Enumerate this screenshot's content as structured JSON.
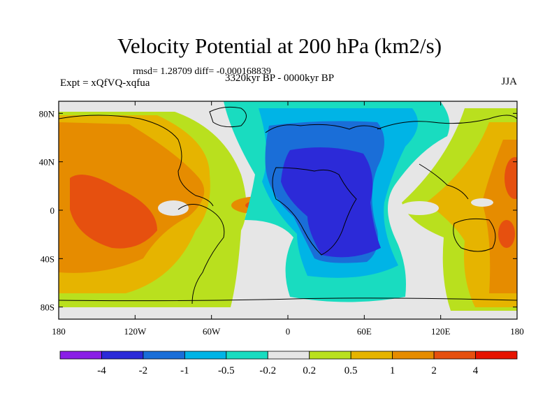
{
  "title": "Velocity Potential at 200 hPa (km2/s)",
  "stats": "rmsd= 1.28709 diff= -0.000168839",
  "experiment": "Expt = xQfVQ-xqfua",
  "period": "3320kyr BP - 0000kyr BP",
  "season": "JJA",
  "map": {
    "lon_range": [
      -180,
      180
    ],
    "lat_range": [
      -90,
      90
    ],
    "x_ticks": [
      {
        "value": -180,
        "label": "180"
      },
      {
        "value": -120,
        "label": "120W"
      },
      {
        "value": -60,
        "label": "60W"
      },
      {
        "value": 0,
        "label": "0"
      },
      {
        "value": 60,
        "label": "60E"
      },
      {
        "value": 120,
        "label": "120E"
      },
      {
        "value": 180,
        "label": "180"
      }
    ],
    "y_ticks": [
      {
        "value": 80,
        "label": "80N"
      },
      {
        "value": 40,
        "label": "40N"
      },
      {
        "value": 0,
        "label": "0"
      },
      {
        "value": -40,
        "label": "40S"
      },
      {
        "value": -80,
        "label": "80S"
      }
    ]
  },
  "colorbar": {
    "colors": [
      "#8a1ee6",
      "#2c2ad8",
      "#1a6ed8",
      "#00b4e6",
      "#19dcc0",
      "#e6e6e6",
      "#b9e01e",
      "#e6b400",
      "#e68c00",
      "#e6500f",
      "#e61400"
    ],
    "labels": [
      "-4",
      "-2",
      "-1",
      "-0.5",
      "-0.2",
      "0.2",
      "0.5",
      "1",
      "2",
      "4"
    ]
  }
}
